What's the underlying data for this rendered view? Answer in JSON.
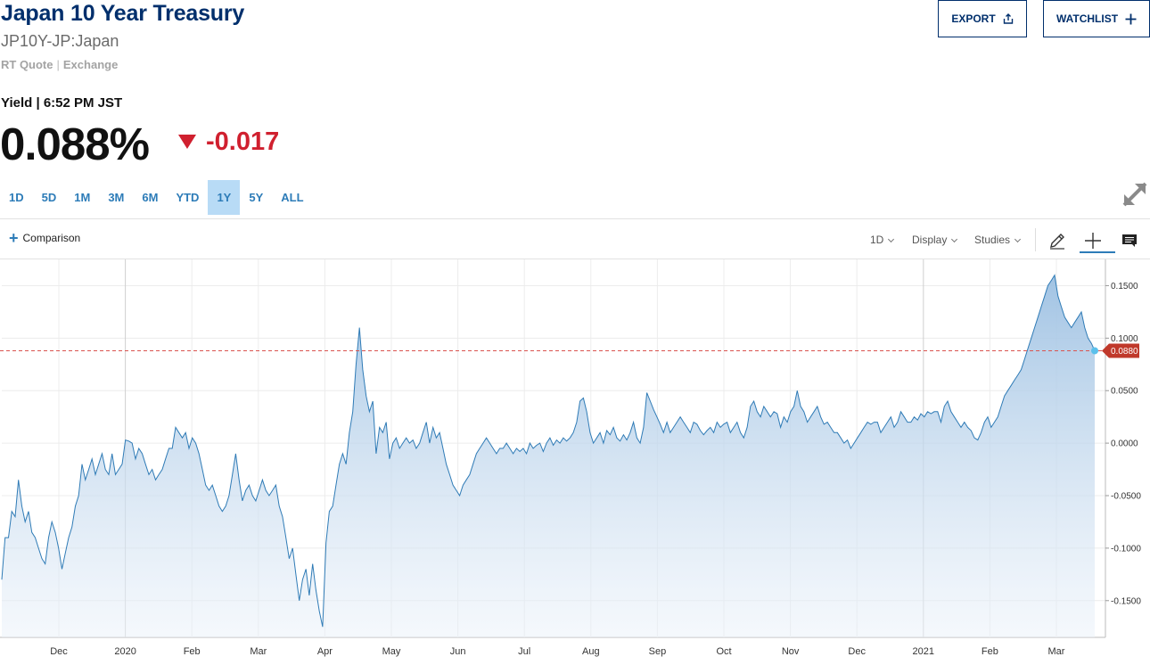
{
  "header": {
    "title": "Japan 10 Year Treasury",
    "symbol": "JP10Y-JP:Japan",
    "quote_source": "RT Quote",
    "quote_exchange": "Exchange",
    "export_label": "EXPORT",
    "watchlist_label": "WATCHLIST"
  },
  "quote": {
    "label": "Yield | 6:52 PM JST",
    "value": "0.088%",
    "change": "-0.017",
    "change_color": "#d0202f"
  },
  "ranges": [
    {
      "label": "1D",
      "active": false
    },
    {
      "label": "5D",
      "active": false
    },
    {
      "label": "1M",
      "active": false
    },
    {
      "label": "3M",
      "active": false
    },
    {
      "label": "6M",
      "active": false
    },
    {
      "label": "YTD",
      "active": false
    },
    {
      "label": "1Y",
      "active": true
    },
    {
      "label": "5Y",
      "active": false
    },
    {
      "label": "ALL",
      "active": false
    }
  ],
  "toolbar": {
    "comparison_label": "Comparison",
    "interval_label": "1D",
    "display_label": "Display",
    "studies_label": "Studies",
    "icons": [
      "pencil-icon",
      "crosshair-icon",
      "comment-icon"
    ]
  },
  "chart_data": {
    "type": "area",
    "x_ticks": [
      "Dec",
      "2020",
      "Feb",
      "Mar",
      "Apr",
      "May",
      "Jun",
      "Jul",
      "Aug",
      "Sep",
      "Oct",
      "Nov",
      "Dec",
      "2021",
      "Feb",
      "Mar"
    ],
    "y_ticks": [
      "0.1500",
      "0.1000",
      "0.0500",
      "0.0000",
      "-0.0500",
      "-0.1000",
      "-0.1500"
    ],
    "ylim": [
      -0.185,
      0.175
    ],
    "current_value_label": "0.0880",
    "current_value": 0.088,
    "line_color": "#2f7bb6",
    "reference_line_color": "#d9534f",
    "label_bg_color": "#c0392b",
    "series": [
      {
        "values": [
          -0.13,
          -0.09,
          -0.09,
          -0.065,
          -0.07,
          -0.035,
          -0.06,
          -0.075,
          -0.065,
          -0.085,
          -0.09,
          -0.1,
          -0.11,
          -0.115,
          -0.09,
          -0.075,
          -0.085,
          -0.1,
          -0.12,
          -0.105,
          -0.09,
          -0.08,
          -0.06,
          -0.05,
          -0.02,
          -0.035,
          -0.025,
          -0.015,
          -0.03,
          -0.02,
          -0.01,
          -0.025,
          -0.03,
          -0.01,
          -0.03,
          -0.025,
          -0.02,
          0.003,
          0.002,
          0.0,
          -0.015,
          -0.005,
          -0.01,
          -0.02,
          -0.03,
          -0.025,
          -0.035,
          -0.03,
          -0.025,
          -0.015,
          -0.005,
          -0.005,
          0.015,
          0.01,
          0.005,
          0.01,
          -0.005,
          0.005,
          0.0,
          -0.01,
          -0.025,
          -0.04,
          -0.045,
          -0.04,
          -0.05,
          -0.06,
          -0.065,
          -0.06,
          -0.05,
          -0.03,
          -0.01,
          -0.035,
          -0.055,
          -0.045,
          -0.04,
          -0.05,
          -0.055,
          -0.045,
          -0.035,
          -0.045,
          -0.05,
          -0.045,
          -0.04,
          -0.06,
          -0.07,
          -0.09,
          -0.11,
          -0.1,
          -0.125,
          -0.15,
          -0.13,
          -0.12,
          -0.145,
          -0.115,
          -0.14,
          -0.16,
          -0.175,
          -0.095,
          -0.065,
          -0.06,
          -0.04,
          -0.02,
          -0.01,
          -0.02,
          0.01,
          0.03,
          0.075,
          0.11,
          0.07,
          0.045,
          0.03,
          0.04,
          -0.01,
          0.015,
          0.01,
          0.02,
          -0.015,
          0.0,
          0.005,
          -0.005,
          0.0,
          0.005,
          0.0,
          0.003,
          -0.005,
          0.0,
          0.01,
          0.02,
          0.0,
          0.015,
          0.005,
          0.01,
          -0.005,
          -0.02,
          -0.03,
          -0.04,
          -0.045,
          -0.05,
          -0.04,
          -0.035,
          -0.03,
          -0.02,
          -0.01,
          -0.005,
          0.0,
          0.005,
          0.0,
          -0.005,
          -0.01,
          -0.005,
          -0.005,
          0.0,
          -0.005,
          -0.01,
          -0.005,
          -0.008,
          -0.005,
          -0.01,
          0.0,
          -0.005,
          -0.002,
          0.0,
          -0.008,
          0.0,
          0.005,
          -0.002,
          0.003,
          0.0,
          0.005,
          0.002,
          0.005,
          0.01,
          0.02,
          0.04,
          0.043,
          0.03,
          0.01,
          0.0,
          0.005,
          0.01,
          0.0,
          0.012,
          0.008,
          0.015,
          0.005,
          0.002,
          0.008,
          0.003,
          0.01,
          0.02,
          0.005,
          0.0,
          0.015,
          0.048,
          0.04,
          0.032,
          0.025,
          0.018,
          0.01,
          0.02,
          0.01,
          0.015,
          0.02,
          0.025,
          0.02,
          0.015,
          0.01,
          0.02,
          0.018,
          0.012,
          0.008,
          0.012,
          0.015,
          0.01,
          0.02,
          0.015,
          0.018,
          0.02,
          0.01,
          0.015,
          0.02,
          0.01,
          0.005,
          0.015,
          0.035,
          0.04,
          0.03,
          0.025,
          0.035,
          0.03,
          0.025,
          0.03,
          0.028,
          0.015,
          0.025,
          0.02,
          0.03,
          0.035,
          0.05,
          0.035,
          0.03,
          0.02,
          0.025,
          0.03,
          0.035,
          0.025,
          0.018,
          0.02,
          0.015,
          0.01,
          0.01,
          0.005,
          0.0,
          0.003,
          -0.005,
          0.0,
          0.005,
          0.01,
          0.015,
          0.02,
          0.018,
          0.02,
          0.02,
          0.01,
          0.015,
          0.02,
          0.025,
          0.015,
          0.02,
          0.03,
          0.025,
          0.02,
          0.02,
          0.025,
          0.022,
          0.028,
          0.025,
          0.03,
          0.028,
          0.03,
          0.03,
          0.02,
          0.035,
          0.04,
          0.03,
          0.025,
          0.02,
          0.015,
          0.02,
          0.015,
          0.012,
          0.005,
          0.003,
          0.01,
          0.02,
          0.025,
          0.015,
          0.02,
          0.025,
          0.035,
          0.045,
          0.05,
          0.055,
          0.06,
          0.065,
          0.07,
          0.08,
          0.09,
          0.1,
          0.11,
          0.12,
          0.13,
          0.14,
          0.15,
          0.155,
          0.16,
          0.14,
          0.13,
          0.12,
          0.115,
          0.11,
          0.115,
          0.12,
          0.125,
          0.11,
          0.1,
          0.095,
          0.088
        ]
      }
    ]
  }
}
